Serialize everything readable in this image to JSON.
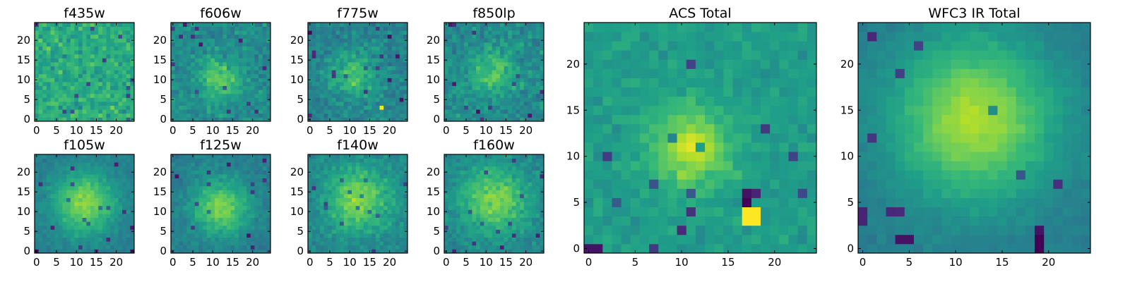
{
  "figure": {
    "colormap": "viridis",
    "colormap_stops": [
      "#440154",
      "#482878",
      "#3e4989",
      "#31688e",
      "#26828e",
      "#1f9e89",
      "#35b779",
      "#6ece58",
      "#b5de2b",
      "#fde725"
    ]
  },
  "chart_data": [
    {
      "type": "heatmap",
      "title": "f435w",
      "grid_size": 25,
      "xlim": [
        0,
        24
      ],
      "ylim": [
        0,
        24
      ],
      "xticks": [
        "0",
        "5",
        "10",
        "15",
        "20"
      ],
      "yticks": [
        "0",
        "5",
        "10",
        "15",
        "20"
      ],
      "blob": {
        "x": 12,
        "y": 10,
        "sigma": 6,
        "strength": 0.0
      },
      "base": 0.62,
      "noise": 0.2,
      "hotspots": []
    },
    {
      "type": "heatmap",
      "title": "f606w",
      "grid_size": 25,
      "xlim": [
        0,
        24
      ],
      "ylim": [
        0,
        24
      ],
      "xticks": [
        "0",
        "5",
        "10",
        "15",
        "20"
      ],
      "yticks": [
        "0",
        "5",
        "10",
        "15",
        "20"
      ],
      "blob": {
        "x": 12,
        "y": 10,
        "sigma": 3.5,
        "strength": 0.28
      },
      "base": 0.48,
      "noise": 0.16,
      "hotspots": []
    },
    {
      "type": "heatmap",
      "title": "f775w",
      "grid_size": 25,
      "xlim": [
        0,
        24
      ],
      "ylim": [
        0,
        24
      ],
      "xticks": [
        "0",
        "5",
        "10",
        "15",
        "20"
      ],
      "yticks": [
        "0",
        "5",
        "10",
        "15",
        "20"
      ],
      "blob": {
        "x": 11,
        "y": 11,
        "sigma": 4,
        "strength": 0.25
      },
      "base": 0.45,
      "noise": 0.16,
      "hotspots": [
        {
          "x": 18,
          "y": 3,
          "value": 1.0
        }
      ]
    },
    {
      "type": "heatmap",
      "title": "f850lp",
      "grid_size": 25,
      "xlim": [
        0,
        24
      ],
      "ylim": [
        0,
        24
      ],
      "xticks": [
        "0",
        "5",
        "10",
        "15",
        "20"
      ],
      "yticks": [
        "0",
        "5",
        "10",
        "15",
        "20"
      ],
      "blob": {
        "x": 12,
        "y": 12,
        "sigma": 4,
        "strength": 0.25
      },
      "base": 0.48,
      "noise": 0.16,
      "hotspots": []
    },
    {
      "type": "heatmap",
      "title": "f105w",
      "grid_size": 25,
      "xlim": [
        0,
        24
      ],
      "ylim": [
        0,
        24
      ],
      "xticks": [
        "0",
        "5",
        "10",
        "15",
        "20"
      ],
      "yticks": [
        "0",
        "5",
        "10",
        "15",
        "20"
      ],
      "blob": {
        "x": 12,
        "y": 12,
        "sigma": 5.5,
        "strength": 0.4
      },
      "base": 0.42,
      "noise": 0.08,
      "hotspots": [
        {
          "x": 4,
          "y": 6,
          "value": 0.1
        },
        {
          "x": 22,
          "y": 10,
          "value": 0.15
        }
      ]
    },
    {
      "type": "heatmap",
      "title": "f125w",
      "grid_size": 25,
      "xlim": [
        0,
        24
      ],
      "ylim": [
        0,
        24
      ],
      "xticks": [
        "0",
        "5",
        "10",
        "15",
        "20"
      ],
      "yticks": [
        "0",
        "5",
        "10",
        "15",
        "20"
      ],
      "blob": {
        "x": 12,
        "y": 11,
        "sigma": 5,
        "strength": 0.38
      },
      "base": 0.42,
      "noise": 0.1,
      "hotspots": [
        {
          "x": 20,
          "y": 1,
          "value": 0.1
        }
      ]
    },
    {
      "type": "heatmap",
      "title": "f140w",
      "grid_size": 25,
      "xlim": [
        0,
        24
      ],
      "ylim": [
        0,
        24
      ],
      "xticks": [
        "0",
        "5",
        "10",
        "15",
        "20"
      ],
      "yticks": [
        "0",
        "5",
        "10",
        "15",
        "20"
      ],
      "blob": {
        "x": 12,
        "y": 13,
        "sigma": 6,
        "strength": 0.35
      },
      "base": 0.45,
      "noise": 0.12,
      "hotspots": []
    },
    {
      "type": "heatmap",
      "title": "f160w",
      "grid_size": 25,
      "xlim": [
        0,
        24
      ],
      "ylim": [
        0,
        24
      ],
      "xticks": [
        "0",
        "5",
        "10",
        "15",
        "20"
      ],
      "yticks": [
        "0",
        "5",
        "10",
        "15",
        "20"
      ],
      "blob": {
        "x": 12,
        "y": 13,
        "sigma": 6,
        "strength": 0.35
      },
      "base": 0.45,
      "noise": 0.12,
      "hotspots": [
        {
          "x": 2,
          "y": 0,
          "value": 0.1
        }
      ]
    },
    {
      "type": "heatmap",
      "title": "ACS Total",
      "grid_size": 25,
      "xlim": [
        0,
        24
      ],
      "ylim": [
        0,
        24
      ],
      "xticks": [
        "0",
        "5",
        "10",
        "15",
        "20"
      ],
      "yticks": [
        "0",
        "5",
        "10",
        "15",
        "20"
      ],
      "blob": {
        "x": 11,
        "y": 11,
        "sigma": 3,
        "strength": 0.35
      },
      "base": 0.55,
      "noise": 0.1,
      "hotspots": [
        {
          "x": 17,
          "y": 3,
          "value": 1.0
        },
        {
          "x": 18,
          "y": 3,
          "value": 1.0
        },
        {
          "x": 17,
          "y": 4,
          "value": 1.0
        },
        {
          "x": 18,
          "y": 4,
          "value": 1.0
        },
        {
          "x": 17,
          "y": 5,
          "value": 0.0
        },
        {
          "x": 17,
          "y": 6,
          "value": 0.05
        },
        {
          "x": 0,
          "y": 0,
          "value": 0.05
        },
        {
          "x": 1,
          "y": 0,
          "value": 0.05
        },
        {
          "x": 18,
          "y": 6,
          "value": 0.1
        }
      ]
    },
    {
      "type": "heatmap",
      "title": "WFC3 IR Total",
      "grid_size": 25,
      "xlim": [
        0,
        24
      ],
      "ylim": [
        0,
        24
      ],
      "xticks": [
        "0",
        "5",
        "10",
        "15",
        "20"
      ],
      "yticks": [
        "0",
        "5",
        "10",
        "15",
        "20"
      ],
      "blob": {
        "x": 12,
        "y": 14,
        "sigma": 6,
        "strength": 0.45
      },
      "base": 0.42,
      "noise": 0.05,
      "hotspots": [
        {
          "x": 19,
          "y": 0,
          "value": 0.0
        },
        {
          "x": 19,
          "y": 1,
          "value": 0.0
        },
        {
          "x": 19,
          "y": 2,
          "value": 0.05
        },
        {
          "x": 4,
          "y": 1,
          "value": 0.05
        },
        {
          "x": 5,
          "y": 1,
          "value": 0.05
        },
        {
          "x": 0,
          "y": 4,
          "value": 0.1
        },
        {
          "x": 0,
          "y": 3,
          "value": 0.1
        }
      ]
    }
  ]
}
